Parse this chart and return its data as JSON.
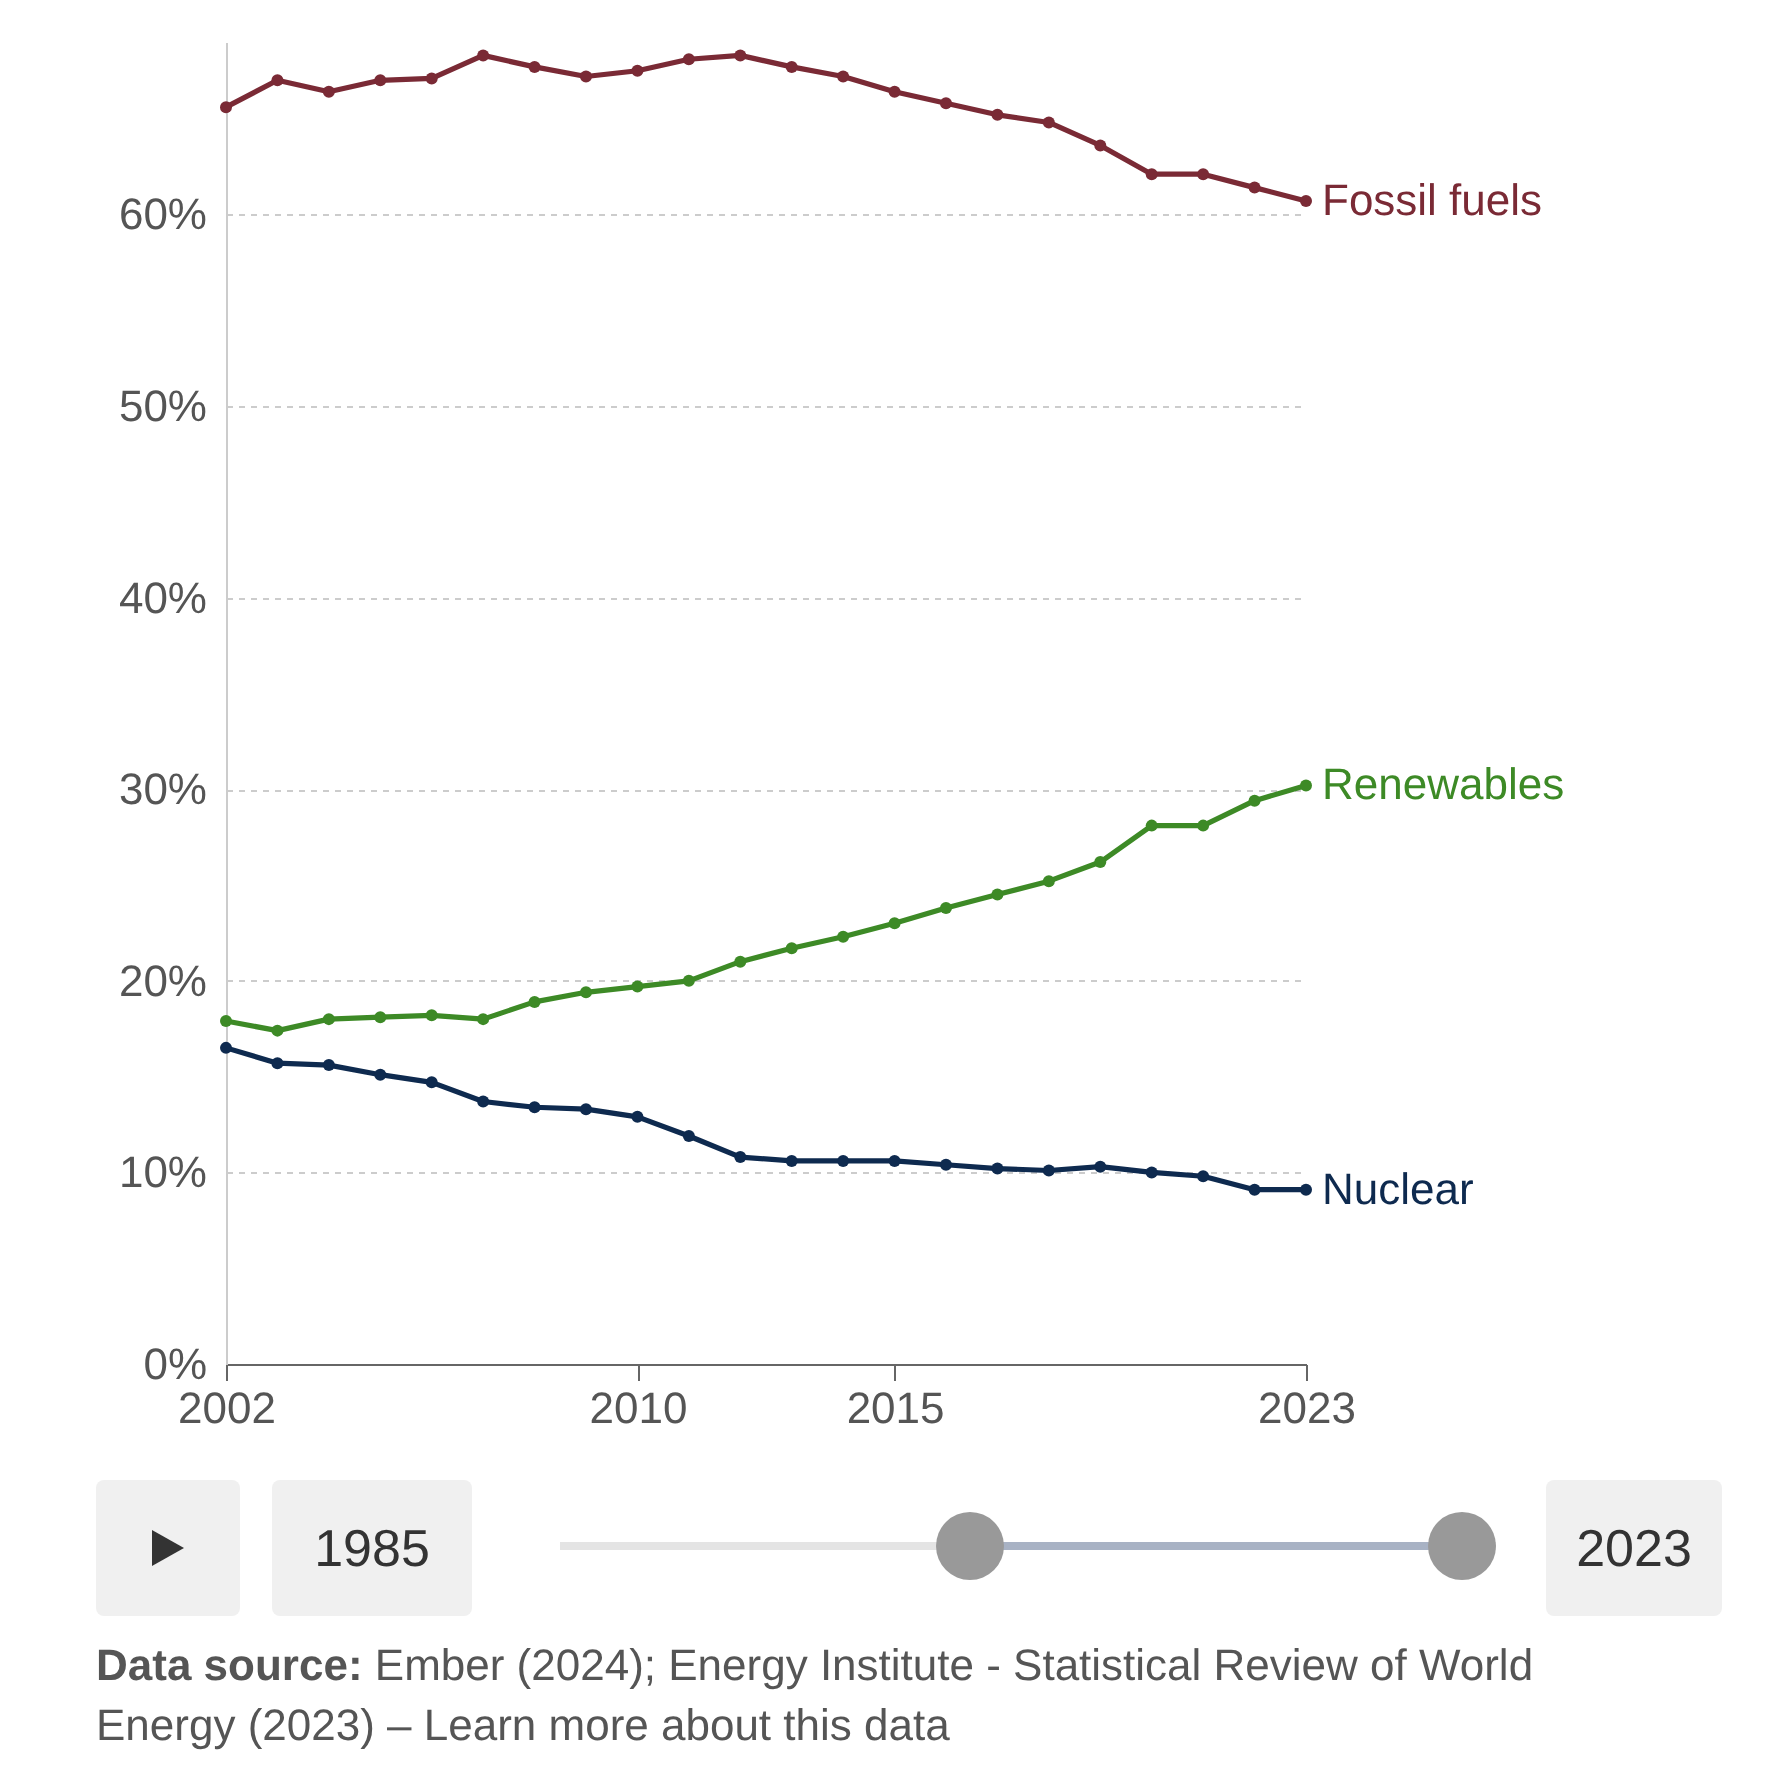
{
  "chart_data": {
    "type": "line",
    "x": [
      2002,
      2003,
      2004,
      2005,
      2006,
      2007,
      2008,
      2009,
      2010,
      2011,
      2012,
      2013,
      2014,
      2015,
      2016,
      2017,
      2018,
      2019,
      2020,
      2021,
      2022,
      2023
    ],
    "series": [
      {
        "name": "Fossil fuels",
        "color": "#7a2a35",
        "values": [
          65.6,
          67.0,
          66.4,
          67.0,
          67.1,
          68.3,
          67.7,
          67.2,
          67.5,
          68.1,
          68.3,
          67.7,
          67.2,
          66.4,
          65.8,
          65.2,
          64.8,
          63.6,
          62.1,
          62.1,
          61.4,
          60.7
        ]
      },
      {
        "name": "Renewables",
        "color": "#3d8a26",
        "values": [
          17.9,
          17.4,
          18.0,
          18.1,
          18.2,
          18.0,
          18.9,
          19.4,
          19.7,
          20.0,
          21.0,
          21.7,
          22.3,
          23.0,
          23.8,
          24.5,
          25.2,
          26.2,
          28.1,
          28.1,
          29.4,
          30.2
        ]
      },
      {
        "name": "Nuclear",
        "color": "#0e2a4f",
        "values": [
          16.5,
          15.7,
          15.6,
          15.1,
          14.7,
          13.7,
          13.4,
          13.3,
          12.9,
          11.9,
          10.8,
          10.6,
          10.6,
          10.6,
          10.4,
          10.2,
          10.1,
          10.3,
          10.0,
          9.8,
          9.1,
          9.1
        ]
      }
    ],
    "xlim": [
      2002,
      2023
    ],
    "xticks": [
      2002,
      2010,
      2015,
      2023
    ],
    "ylim": [
      0,
      69
    ],
    "yticks": [
      {
        "value": 0,
        "label": "0%"
      },
      {
        "value": 10,
        "label": "10%"
      },
      {
        "value": 20,
        "label": "20%"
      },
      {
        "value": 30,
        "label": "30%"
      },
      {
        "value": 40,
        "label": "40%"
      },
      {
        "value": 50,
        "label": "50%"
      },
      {
        "value": 60,
        "label": "60%"
      }
    ],
    "grid": "y",
    "legend": false,
    "marker": "circle",
    "line_style": "solid",
    "annotations": [
      "Data source: Ember (2024); Energy Institute - Statistical Review of World Energy (2023) – Learn more about this data",
      "1985",
      "2023"
    ]
  }
}
